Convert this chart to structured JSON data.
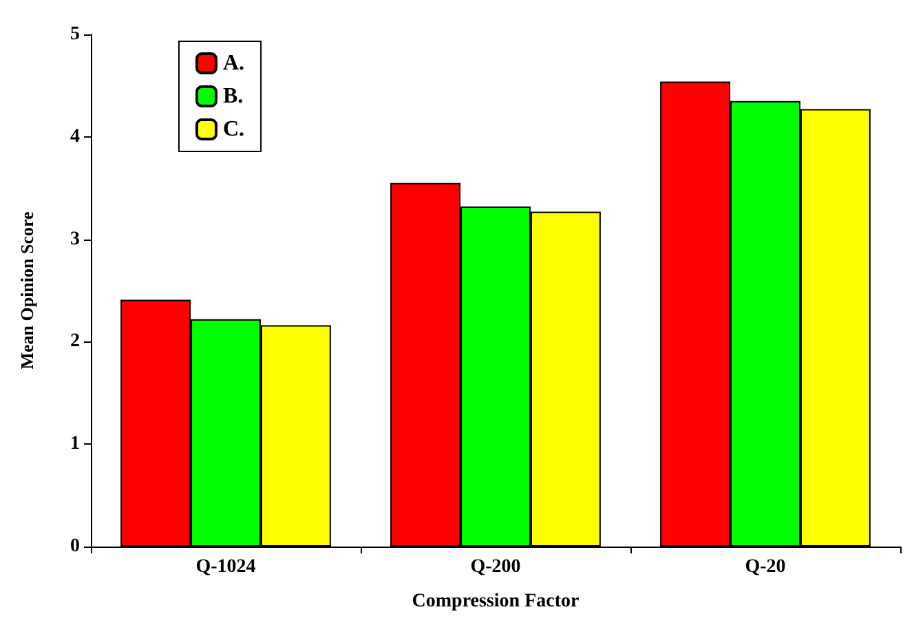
{
  "chart_data": {
    "type": "bar",
    "xlabel": "Compression Factor",
    "ylabel": "Mean Opinion Score",
    "categories": [
      "Q-1024",
      "Q-200",
      "Q-20"
    ],
    "series": [
      {
        "name": "A.",
        "color": "#ff0000",
        "values": [
          2.41,
          3.55,
          4.54
        ]
      },
      {
        "name": "B.",
        "color": "#00ff00",
        "values": [
          2.22,
          3.32,
          4.35
        ]
      },
      {
        "name": "C.",
        "color": "#ffff00",
        "values": [
          2.16,
          3.27,
          4.27
        ]
      }
    ],
    "ylim": [
      0,
      5
    ],
    "yticks": [
      0,
      1,
      2,
      3,
      4,
      5
    ],
    "grid": false,
    "legend": "top left"
  }
}
